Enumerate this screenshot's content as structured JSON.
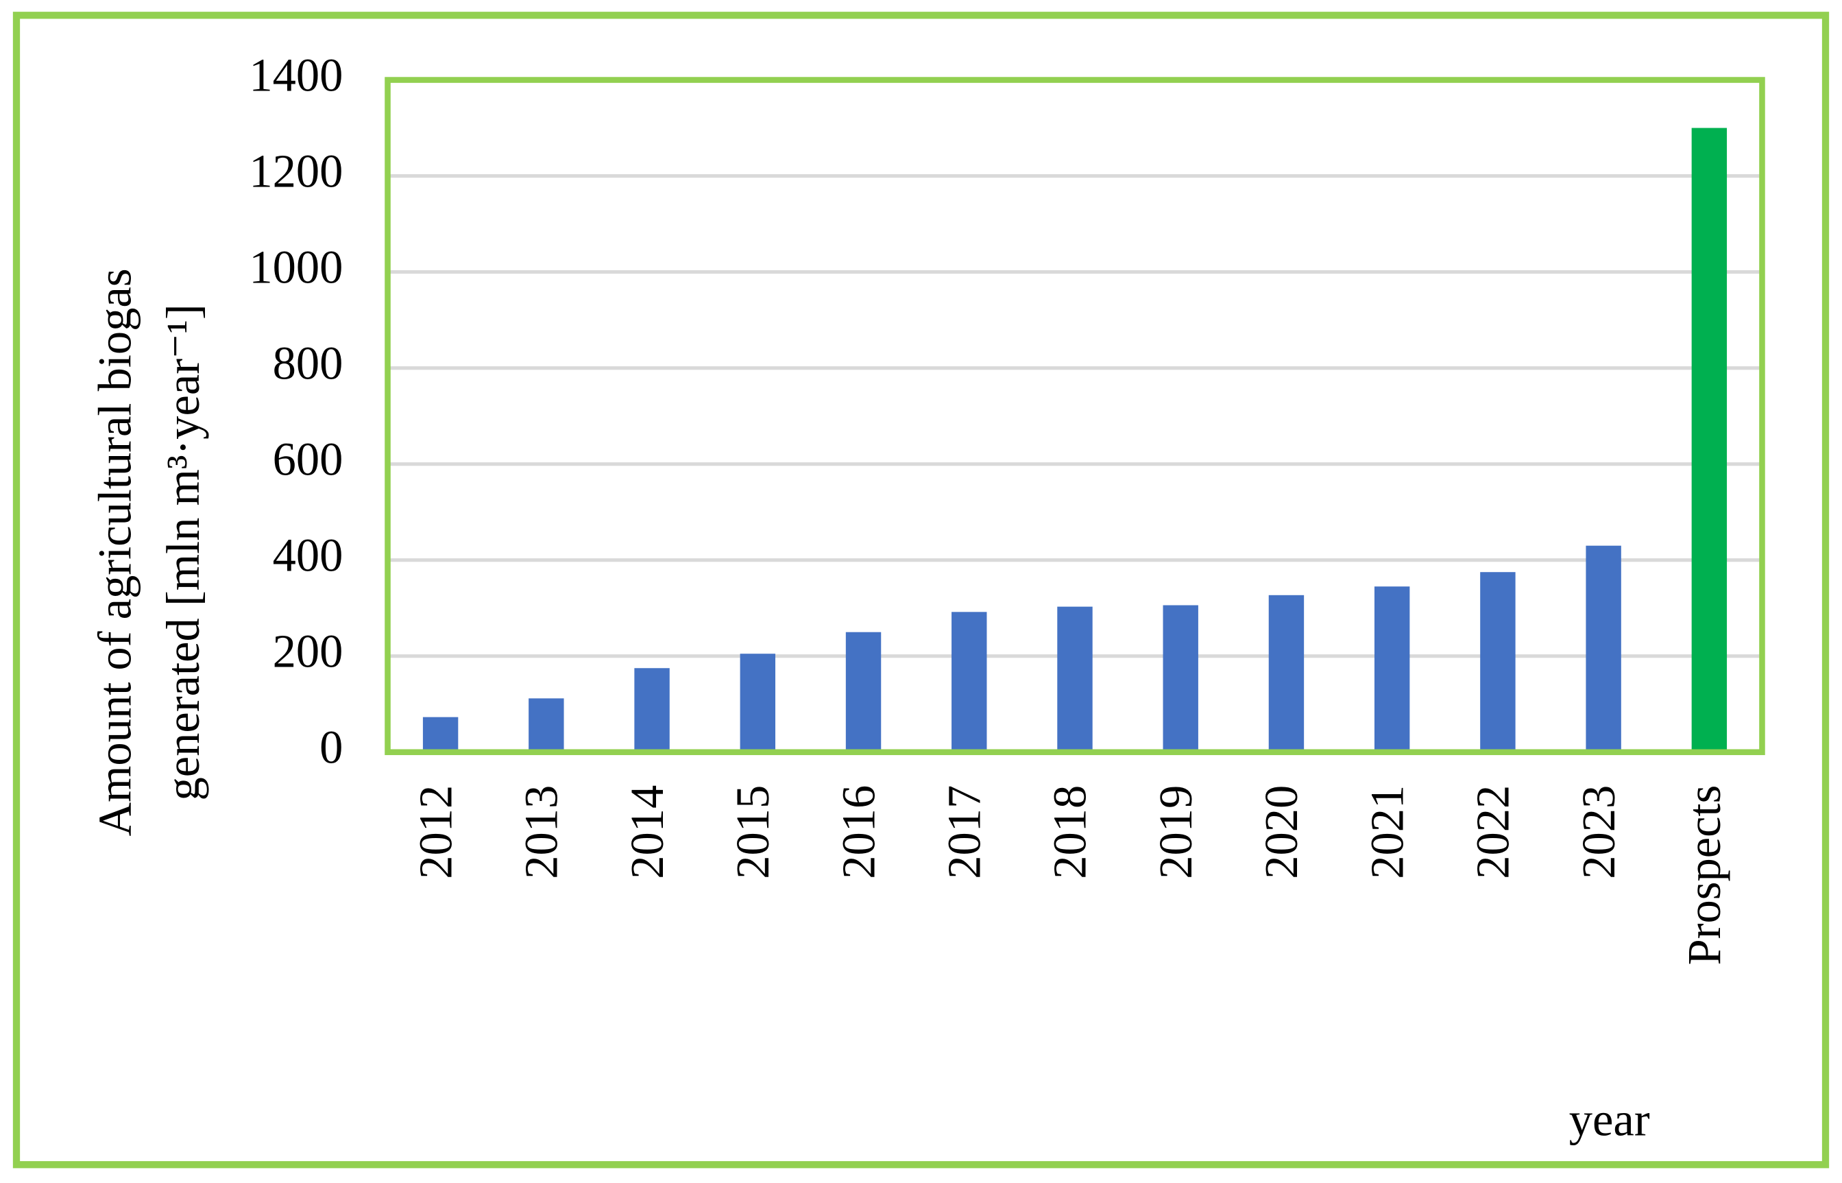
{
  "chart_data": {
    "type": "bar",
    "y_label": [
      "Amount of agricultural biogas",
      "generated [mln m³·year⁻¹]"
    ],
    "x_label": "year",
    "categories": [
      "2012",
      "2013",
      "2014",
      "2015",
      "2016",
      "2017",
      "2018",
      "2019",
      "2020",
      "2021",
      "2022",
      "2023",
      "Prospects"
    ],
    "values": [
      73,
      112,
      175,
      205,
      250,
      292,
      303,
      306,
      327,
      345,
      375,
      430,
      1300
    ],
    "colors": [
      "#4472c4",
      "#4472c4",
      "#4472c4",
      "#4472c4",
      "#4472c4",
      "#4472c4",
      "#4472c4",
      "#4472c4",
      "#4472c4",
      "#4472c4",
      "#4472c4",
      "#4472c4",
      "#00b050"
    ],
    "ylim": [
      0,
      1400
    ],
    "yticks": [
      0,
      200,
      400,
      600,
      800,
      1000,
      1200,
      1400
    ],
    "grid": true
  }
}
